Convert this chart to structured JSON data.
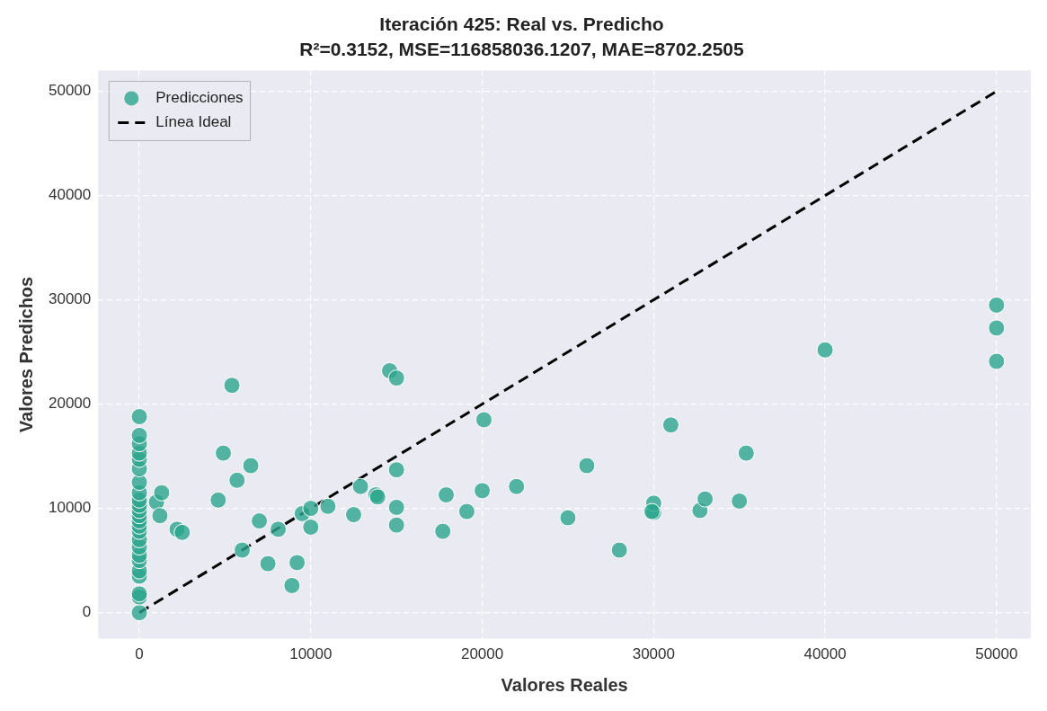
{
  "chart_data": {
    "type": "scatter",
    "title": "Iteración 425: Real vs. Predicho",
    "subtitle": "R²=0.3152, MSE=116858036.1207, MAE=8702.2505",
    "xlabel": "Valores Reales",
    "ylabel": "Valores Predichos",
    "xlim": [
      -2400,
      52000
    ],
    "ylim": [
      -2500,
      52000
    ],
    "xticks": [
      0,
      10000,
      20000,
      30000,
      40000,
      50000
    ],
    "yticks": [
      0,
      10000,
      20000,
      30000,
      40000,
      50000
    ],
    "grid": true,
    "legend": "top left",
    "marker": "circle",
    "series": [
      {
        "name": "Predicciones",
        "color": "#2ca58d",
        "x": [
          0,
          0,
          0,
          0,
          0,
          0,
          0,
          0,
          0,
          0,
          0,
          0,
          0,
          0,
          0,
          0,
          0,
          0,
          0,
          0,
          0,
          0,
          0,
          0,
          1000,
          1300,
          1200,
          2200,
          2500,
          4600,
          4900,
          5400,
          5700,
          6000,
          6500,
          7000,
          7500,
          8100,
          8900,
          9200,
          9500,
          10000,
          10000,
          11000,
          12500,
          12900,
          13800,
          13900,
          14600,
          15000,
          15000,
          15000,
          15000,
          17700,
          17900,
          19100,
          20100,
          20000,
          22000,
          25000,
          26100,
          28000,
          30000,
          30000,
          29900,
          31000,
          32700,
          33000,
          35000,
          35400,
          40000,
          50000,
          50000,
          50000
        ],
        "values": [
          0,
          1500,
          1800,
          3500,
          4000,
          5000,
          5500,
          6300,
          7000,
          7800,
          8300,
          8800,
          9300,
          9800,
          10300,
          10800,
          11500,
          12500,
          13800,
          14700,
          15300,
          16200,
          17000,
          18800,
          10600,
          11500,
          9300,
          8000,
          7700,
          10800,
          15300,
          21800,
          12700,
          6000,
          14100,
          8800,
          4700,
          8000,
          2600,
          4800,
          9500,
          8200,
          10000,
          10200,
          9400,
          12100,
          11300,
          11100,
          23200,
          22500,
          13700,
          10100,
          8400,
          7800,
          11300,
          9700,
          18500,
          11700,
          12100,
          9100,
          14100,
          6000,
          9600,
          10500,
          9700,
          18000,
          9800,
          10900,
          10700,
          15300,
          25200,
          29500,
          27300,
          24100
        ]
      },
      {
        "name": "Línea Ideal",
        "type": "line",
        "color": "#000000",
        "line_style": "dashed",
        "marker": "none",
        "x": [
          0,
          50000
        ],
        "values": [
          0,
          50000
        ]
      }
    ]
  }
}
